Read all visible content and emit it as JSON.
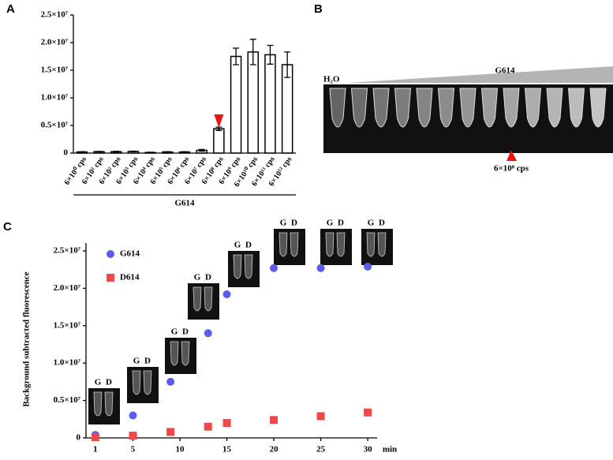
{
  "chart_data": [
    {
      "type": "bar",
      "panel_label": "A",
      "categories": [
        "6×10⁰ cps",
        "6×10¹ cps",
        "6×10² cps",
        "6×10³ cps",
        "6×10⁴ cps",
        "6×10⁵ cps",
        "6×10⁶ cps",
        "6×10⁷ cps",
        "6×10⁸ cps",
        "6×10⁹ cps",
        "6×10¹⁰ cps",
        "6×10¹¹ cps",
        "6×10¹² cps"
      ],
      "values": [
        200000,
        250000,
        250000,
        300000,
        100000,
        200000,
        200000,
        500000,
        4400000,
        17500000,
        18300000,
        17800000,
        16000000
      ],
      "errors": [
        50000,
        50000,
        60000,
        50000,
        50000,
        50000,
        50000,
        150000,
        300000,
        1500000,
        2300000,
        1700000,
        2300000
      ],
      "color": "#ffffff",
      "group_label": "G614",
      "ylim": [
        0,
        25000000
      ],
      "yticks": [
        0,
        {
          "value": 5000000,
          "label": "0.5×10⁷"
        },
        {
          "value": 10000000,
          "label": "1.0×10⁷"
        },
        {
          "value": 15000000,
          "label": "1.5×10⁷"
        },
        {
          "value": 20000000,
          "label": "2.0×10⁷"
        },
        {
          "value": 25000000,
          "label": "2.5×10⁷"
        }
      ]
    },
    {
      "type": "scatter",
      "panel_label": "C",
      "ylabel": "Background subtracted fluorescence",
      "xlabel": "min",
      "x": [
        1,
        5,
        9,
        13,
        15,
        20,
        25,
        30
      ],
      "series": [
        {
          "name": "G614",
          "color": "#5b5bef",
          "marker": "circle",
          "values": [
            400000,
            3000000,
            7500000,
            14000000,
            19200000,
            22700000,
            22700000,
            22900000
          ]
        },
        {
          "name": "D614",
          "color": "#f04848",
          "marker": "square",
          "values": [
            100000,
            300000,
            800000,
            1500000,
            2000000,
            2400000,
            2900000,
            3400000
          ]
        }
      ],
      "inset_labels": [
        "G",
        "D"
      ],
      "xlim": [
        0,
        31
      ],
      "xticks": [
        1,
        5,
        10,
        15,
        20,
        25,
        30
      ],
      "ylim": [
        0,
        25000000
      ],
      "yticks": [
        0,
        {
          "value": 5000000,
          "label": "0.5×10⁷"
        },
        {
          "value": 10000000,
          "label": "1.0×10⁷"
        },
        {
          "value": 15000000,
          "label": "1.5×10⁷"
        },
        {
          "value": 20000000,
          "label": "2.0×10⁷"
        },
        {
          "value": 25000000,
          "label": "2.5×10⁷"
        }
      ]
    }
  ],
  "panel_b": {
    "label": "B",
    "left_label": "H₂O",
    "gradient_label": "G614",
    "arrow_label": "6×10⁸ cps"
  }
}
